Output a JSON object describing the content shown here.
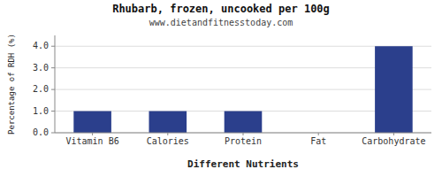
{
  "chart_data": {
    "type": "bar",
    "title": "Rhubarb, frozen, uncooked per 100g",
    "subtitle": "www.dietandfitnesstoday.com",
    "xlabel": "Different Nutrients",
    "ylabel": "Percentage of RDH (%)",
    "categories": [
      "Vitamin B6",
      "Calories",
      "Protein",
      "Fat",
      "Carbohydrate"
    ],
    "values": [
      1.0,
      1.0,
      1.0,
      0.0,
      4.0
    ],
    "color": "#2b3f8c",
    "ylim": [
      0,
      4.5
    ],
    "yticks": [
      {
        "value": 0.0,
        "label": "0.0"
      },
      {
        "value": 1.0,
        "label": "1.0"
      },
      {
        "value": 2.0,
        "label": "2.0"
      },
      {
        "value": 3.0,
        "label": "3.0"
      },
      {
        "value": 4.0,
        "label": "4.0"
      }
    ],
    "grid": true
  }
}
